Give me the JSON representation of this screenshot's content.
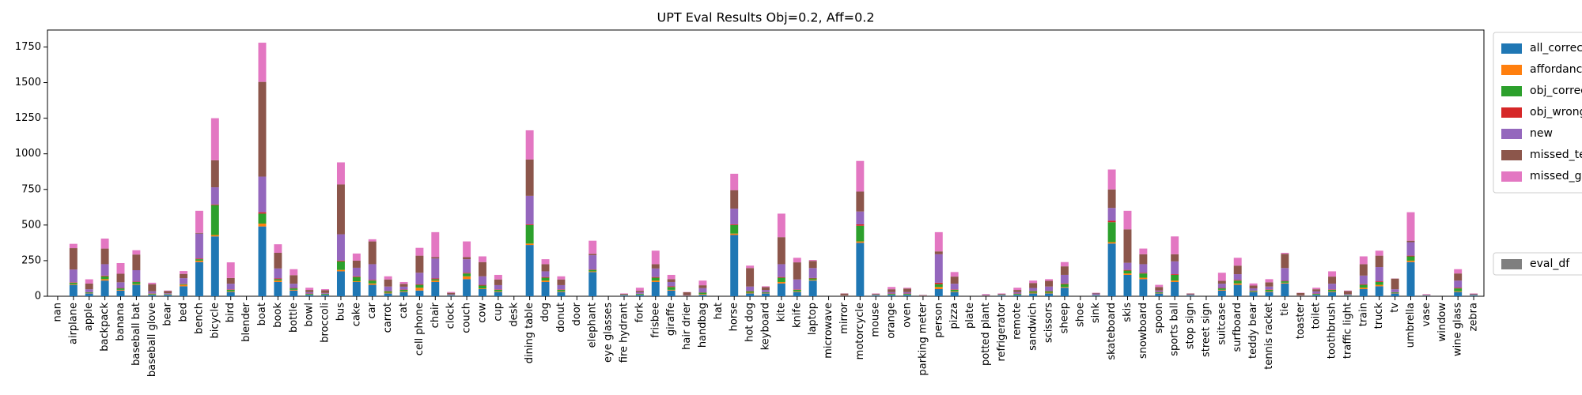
{
  "chart_data": {
    "type": "bar",
    "stacked": true,
    "title": "UPT Eval Results Obj=0.2, Aff=0.2",
    "categories": [
      "nan",
      "airplane",
      "apple",
      "backpack",
      "banana",
      "baseball bat",
      "baseball glove",
      "bear",
      "bed",
      "bench",
      "bicycle",
      "bird",
      "blender",
      "boat",
      "book",
      "bottle",
      "bowl",
      "broccoli",
      "bus",
      "cake",
      "car",
      "carrot",
      "cat",
      "cell phone",
      "chair",
      "clock",
      "couch",
      "cow",
      "cup",
      "desk",
      "dining table",
      "dog",
      "donut",
      "door",
      "elephant",
      "eye glasses",
      "fire hydrant",
      "fork",
      "frisbee",
      "giraffe",
      "hair drier",
      "handbag",
      "hat",
      "horse",
      "hot dog",
      "keyboard",
      "kite",
      "knife",
      "laptop",
      "microwave",
      "mirror",
      "motorcycle",
      "mouse",
      "orange",
      "oven",
      "parking meter",
      "person",
      "pizza",
      "plate",
      "potted plant",
      "refrigerator",
      "remote",
      "sandwich",
      "scissors",
      "sheep",
      "shoe",
      "sink",
      "skateboard",
      "skis",
      "snowboard",
      "spoon",
      "sports ball",
      "stop sign",
      "street sign",
      "suitcase",
      "surfboard",
      "teddy bear",
      "tennis racket",
      "tie",
      "toaster",
      "toilet",
      "toothbrush",
      "traffic light",
      "train",
      "truck",
      "tv",
      "umbrella",
      "vase",
      "window",
      "wine glass",
      "zebra"
    ],
    "series": [
      {
        "name": "all_correc",
        "color": "#1f77b4",
        "values": [
          0,
          80,
          20,
          110,
          40,
          80,
          10,
          10,
          70,
          240,
          420,
          30,
          0,
          490,
          100,
          40,
          10,
          10,
          175,
          100,
          80,
          20,
          30,
          40,
          100,
          5,
          120,
          50,
          30,
          0,
          360,
          100,
          30,
          0,
          170,
          0,
          5,
          10,
          100,
          40,
          2,
          10,
          0,
          430,
          20,
          20,
          90,
          30,
          110,
          0,
          2,
          375,
          5,
          10,
          10,
          2,
          50,
          30,
          0,
          2,
          5,
          10,
          20,
          20,
          60,
          0,
          5,
          370,
          150,
          120,
          20,
          100,
          5,
          0,
          40,
          80,
          30,
          30,
          90,
          2,
          10,
          30,
          5,
          50,
          70,
          20,
          240,
          3,
          0,
          30,
          5
        ]
      },
      {
        "name": "affordance",
        "color": "#ff7f0e",
        "values": [
          0,
          5,
          2,
          10,
          5,
          5,
          3,
          2,
          10,
          10,
          10,
          5,
          0,
          20,
          10,
          5,
          2,
          2,
          10,
          5,
          10,
          5,
          5,
          20,
          10,
          1,
          20,
          5,
          5,
          0,
          10,
          10,
          5,
          0,
          5,
          0,
          1,
          2,
          10,
          5,
          1,
          5,
          0,
          10,
          5,
          2,
          10,
          5,
          5,
          0,
          1,
          10,
          1,
          2,
          2,
          1,
          15,
          5,
          0,
          1,
          1,
          2,
          5,
          5,
          5,
          0,
          1,
          10,
          10,
          10,
          3,
          10,
          1,
          0,
          5,
          10,
          3,
          5,
          5,
          1,
          2,
          5,
          2,
          10,
          10,
          2,
          10,
          1,
          0,
          5,
          1
        ]
      },
      {
        "name": "obj_correc",
        "color": "#2ca02c",
        "values": [
          0,
          10,
          5,
          20,
          10,
          15,
          5,
          3,
          5,
          10,
          210,
          10,
          0,
          70,
          10,
          10,
          5,
          5,
          60,
          30,
          20,
          10,
          10,
          20,
          10,
          2,
          20,
          20,
          10,
          0,
          130,
          20,
          10,
          0,
          10,
          0,
          2,
          5,
          20,
          20,
          1,
          10,
          0,
          60,
          10,
          5,
          30,
          10,
          10,
          0,
          1,
          110,
          2,
          5,
          5,
          1,
          20,
          10,
          0,
          1,
          2,
          5,
          10,
          10,
          20,
          0,
          2,
          140,
          20,
          30,
          5,
          40,
          2,
          0,
          10,
          20,
          5,
          10,
          10,
          1,
          5,
          10,
          3,
          20,
          20,
          5,
          30,
          1,
          0,
          20,
          2
        ]
      },
      {
        "name": "obj_wrong",
        "color": "#d62728",
        "values": [
          0,
          3,
          2,
          5,
          3,
          3,
          2,
          1,
          2,
          5,
          5,
          3,
          0,
          10,
          5,
          3,
          2,
          1,
          5,
          5,
          5,
          3,
          2,
          5,
          5,
          1,
          5,
          5,
          3,
          0,
          5,
          5,
          3,
          0,
          3,
          0,
          1,
          1,
          5,
          5,
          1,
          2,
          0,
          5,
          3,
          2,
          5,
          3,
          3,
          0,
          1,
          10,
          1,
          2,
          2,
          1,
          10,
          3,
          0,
          1,
          1,
          2,
          3,
          3,
          5,
          0,
          1,
          10,
          5,
          5,
          2,
          5,
          1,
          0,
          3,
          5,
          2,
          3,
          3,
          1,
          2,
          3,
          1,
          5,
          5,
          2,
          5,
          1,
          0,
          5,
          1
        ]
      },
      {
        "name": "new",
        "color": "#9467bd",
        "values": [
          0,
          90,
          20,
          80,
          40,
          80,
          15,
          5,
          40,
          175,
          120,
          40,
          0,
          250,
          70,
          30,
          10,
          5,
          185,
          60,
          110,
          30,
          20,
          80,
          140,
          5,
          95,
          60,
          30,
          0,
          200,
          40,
          30,
          0,
          100,
          0,
          3,
          10,
          60,
          30,
          3,
          30,
          0,
          110,
          30,
          15,
          90,
          70,
          70,
          0,
          2,
          90,
          4,
          10,
          10,
          2,
          200,
          40,
          0,
          4,
          4,
          10,
          20,
          30,
          60,
          0,
          10,
          90,
          50,
          60,
          10,
          90,
          5,
          0,
          30,
          40,
          15,
          20,
          90,
          2,
          15,
          40,
          5,
          60,
          100,
          20,
          95,
          3,
          0,
          50,
          5
        ]
      },
      {
        "name": "missed_te",
        "color": "#8c564b",
        "values": [
          0,
          150,
          40,
          110,
          60,
          110,
          50,
          15,
          30,
          5,
          190,
          40,
          0,
          665,
          110,
          60,
          15,
          20,
          350,
          50,
          160,
          50,
          20,
          120,
          10,
          10,
          15,
          100,
          40,
          0,
          255,
          50,
          40,
          0,
          10,
          0,
          5,
          10,
          30,
          20,
          20,
          20,
          0,
          130,
          130,
          20,
          190,
          120,
          50,
          0,
          12,
          140,
          5,
          20,
          25,
          2,
          20,
          50,
          0,
          2,
          4,
          15,
          35,
          40,
          60,
          0,
          4,
          130,
          235,
          70,
          25,
          50,
          5,
          0,
          20,
          60,
          20,
          30,
          100,
          16,
          15,
          50,
          20,
          80,
          80,
          75,
          10,
          3,
          0,
          50,
          4
        ]
      },
      {
        "name": "missed_gi",
        "color": "#e377c2",
        "values": [
          0,
          30,
          30,
          70,
          75,
          30,
          10,
          4,
          20,
          155,
          295,
          110,
          0,
          275,
          60,
          42,
          16,
          7,
          155,
          50,
          15,
          22,
          13,
          55,
          175,
          6,
          110,
          40,
          32,
          0,
          205,
          35,
          22,
          0,
          92,
          0,
          3,
          22,
          95,
          30,
          2,
          33,
          0,
          115,
          17,
          6,
          165,
          32,
          7,
          0,
          1,
          215,
          2,
          16,
          6,
          1,
          135,
          32,
          0,
          4,
          3,
          16,
          17,
          12,
          30,
          0,
          2,
          140,
          130,
          40,
          15,
          125,
          1,
          0,
          57,
          55,
          15,
          22,
          7,
          2,
          11,
          37,
          4,
          55,
          35,
          1,
          200,
          3,
          0,
          30,
          2
        ]
      }
    ],
    "extra_legend": [
      {
        "name": "eval_df",
        "color": "#7f7f7f"
      }
    ],
    "ylim": [
      0,
      1869
    ],
    "yticks": [
      0,
      250,
      500,
      750,
      1000,
      1250,
      1500,
      1750
    ],
    "grid": false,
    "legend": "right"
  }
}
